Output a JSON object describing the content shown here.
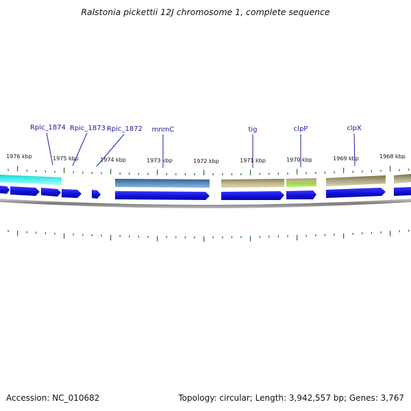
{
  "title": "Ralstonia pickettii 12J chromosome 1, complete sequence",
  "accession_text": "Accession: NC_010682",
  "summary_text": "Topology: circular; Length: 3,942,557 bp; Genes: 3,767",
  "colors": {
    "cds_blue": "#1a1ae6",
    "mnmC": "#4a7fb0",
    "tig": "#b4a874",
    "clpP": "#9ae63c",
    "clpX": "#9c9668",
    "cyan_feature": "#33e6e6",
    "tick": "#2a7a2a",
    "label": "#1a1aa6",
    "backbone": "#8c8c8c"
  },
  "kbp_labels": [
    "1976 kbp",
    "1975 kbp",
    "1974 kbp",
    "1973 kbp",
    "1972 kbp",
    "1971 kbp",
    "1970 kbp",
    "1969 kbp",
    "1968 kbp"
  ],
  "gene_labels": [
    "Rpic_1874",
    "Rpic_1873",
    "Rpic_1872",
    "mnmC",
    "tig",
    "clpP",
    "clpX"
  ]
}
